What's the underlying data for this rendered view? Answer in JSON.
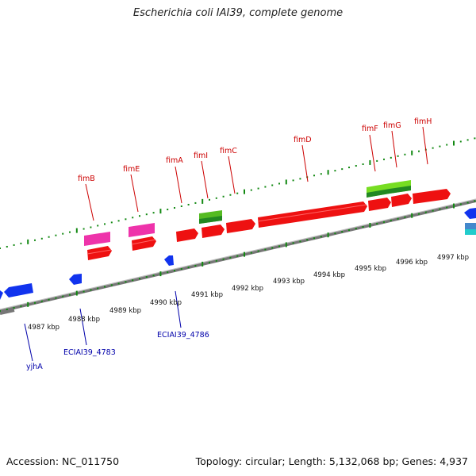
{
  "title": "Escherichia coli IAI39, complete genome",
  "footer": {
    "accession": "Accession: NC_011750",
    "summary": "Topology: circular; Length: 5,132,068 bp; Genes: 4,937"
  },
  "colors": {
    "forward_gene": "#ee1111",
    "reverse_gene": "#1133ee",
    "pink_feature": "#ee33aa",
    "green_feature": "#66cc22",
    "cyan_feature": "#22cccc",
    "backbone": "#888888",
    "tick": "#118811",
    "top_label": "#cc0000",
    "bottom_label": "#0000aa"
  },
  "tick_labels": [
    "4987 kbp",
    "4988 kbp",
    "4989 kbp",
    "4990 kbp",
    "4991 kbp",
    "4992 kbp",
    "4993 kbp",
    "4994 kbp",
    "4995 kbp",
    "4996 kbp",
    "4997 kbp"
  ],
  "top_gene_labels": [
    "fimB",
    "fimE",
    "fimA",
    "fimI",
    "fimC",
    "fimD",
    "fimF",
    "fimG",
    "fimH"
  ],
  "bottom_gene_labels": [
    "yjhA",
    "ECIAI39_4783",
    "ECIAI39_4786"
  ]
}
